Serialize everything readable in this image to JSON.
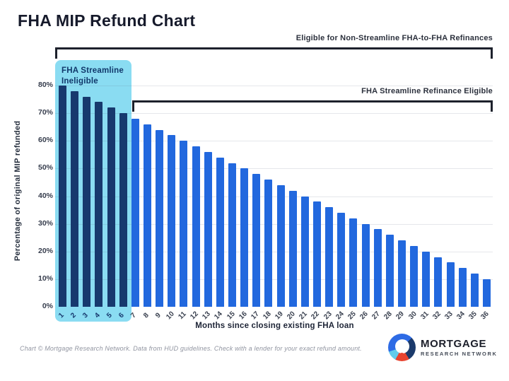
{
  "page_title": "FHA MIP Refund Chart",
  "annotations": {
    "non_streamline_bracket": "Eligible for Non-Streamline FHA-to-FHA Refinances",
    "streamline_bracket": "FHA Streamline Refinance Eligible",
    "ineligible_line1": "FHA Streamline",
    "ineligible_line2": "Ineligible"
  },
  "chart_data": {
    "type": "bar",
    "title": "FHA MIP Refund Chart",
    "xlabel": "Months since closing existing FHA loan",
    "ylabel": "Percentage of original MIP refunded",
    "categories": [
      1,
      2,
      3,
      4,
      5,
      6,
      7,
      8,
      9,
      10,
      11,
      12,
      13,
      14,
      15,
      16,
      17,
      18,
      19,
      20,
      21,
      22,
      23,
      24,
      25,
      26,
      27,
      28,
      29,
      30,
      31,
      32,
      33,
      34,
      35,
      36
    ],
    "values": [
      80,
      78,
      76,
      74,
      72,
      70,
      68,
      66,
      64,
      62,
      60,
      58,
      56,
      54,
      52,
      50,
      48,
      46,
      44,
      42,
      40,
      38,
      36,
      34,
      32,
      30,
      28,
      26,
      24,
      22,
      20,
      18,
      16,
      14,
      12,
      10
    ],
    "ylim": [
      0,
      80
    ],
    "ytick_step": 10,
    "ytick_suffix": "%",
    "grid": true,
    "legend_position": "none",
    "highlight": {
      "month_start": 1,
      "month_end": 6,
      "label": "FHA Streamline Ineligible"
    },
    "colors": {
      "ineligible_bar": "#17396e",
      "eligible_bar": "#2268de",
      "highlight_bg": "#8adcf2",
      "bracket": "#1d212c",
      "tick_label": "#3a4150",
      "ineligible_tick_label": "#17396e"
    }
  },
  "footer": "Chart © Mortgage Research Network. Data from HUD guidelines. Check with a lender for your exact refund amount.",
  "logo": {
    "name": "MORTGAGE",
    "subname": "RESEARCH NETWORK"
  }
}
